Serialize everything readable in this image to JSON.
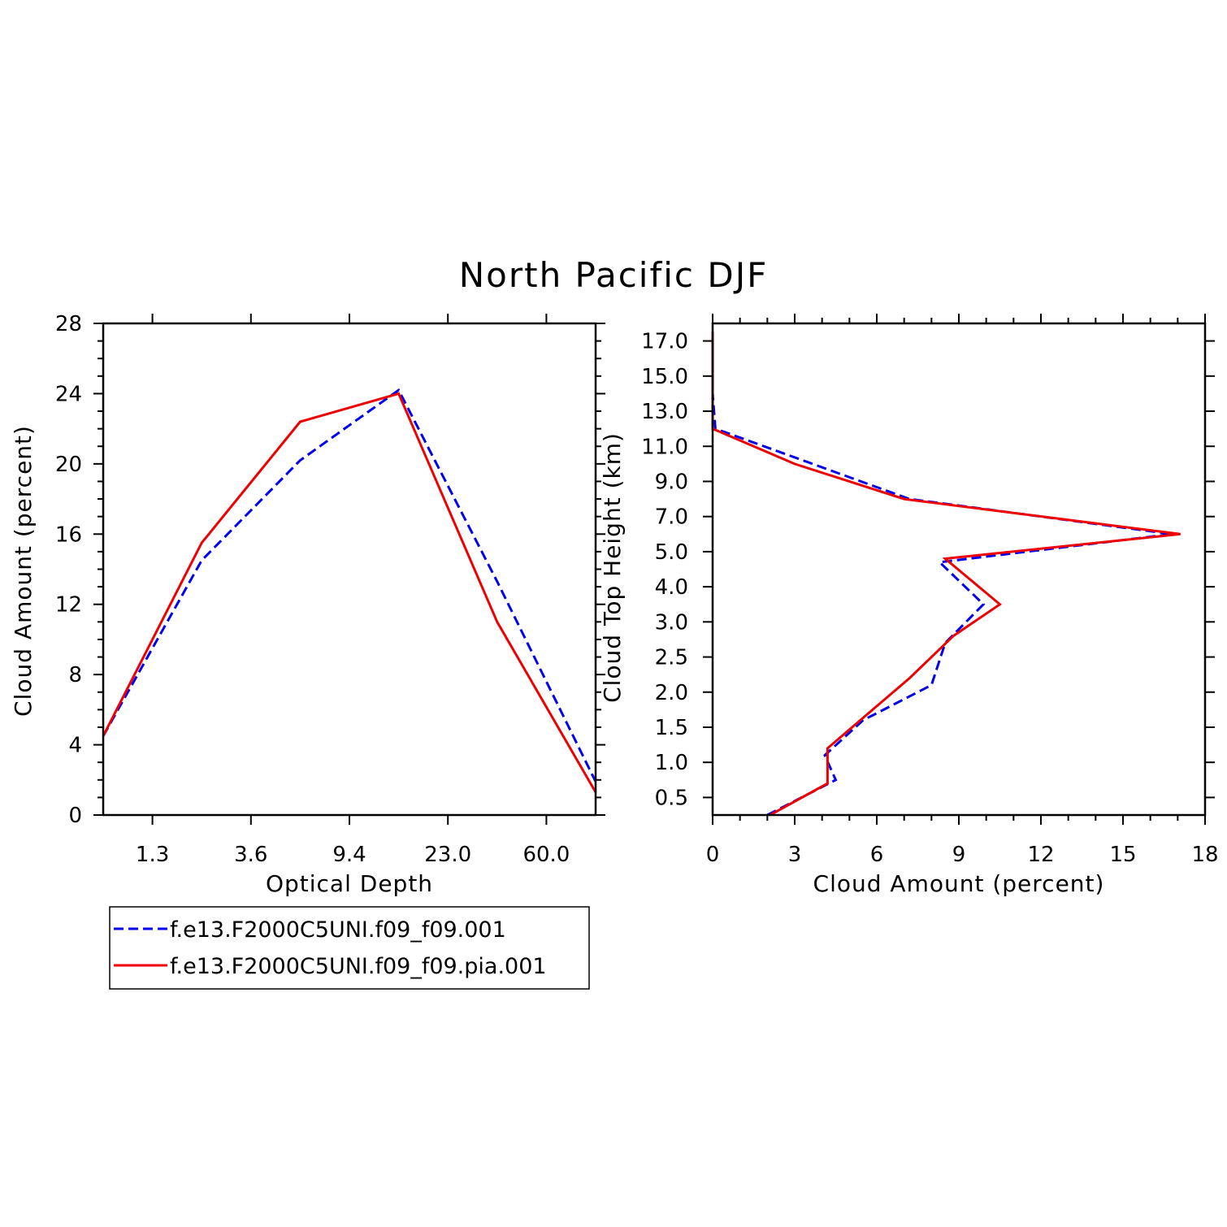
{
  "title": "North Pacific DJF",
  "colors": {
    "series1": "#0000ee",
    "series2": "#ee0000",
    "axis": "#000000"
  },
  "legend": [
    {
      "label": "f.e13.F2000C5UNI.f09_f09.001",
      "style": "dashed",
      "color": "#0000ee"
    },
    {
      "label": "f.e13.F2000C5UNI.f09_f09.pia.001",
      "style": "solid",
      "color": "#ee0000"
    }
  ],
  "chart_data": [
    {
      "type": "line",
      "xlabel": "Optical Depth",
      "ylabel": "Cloud Amount (percent)",
      "x_index": [
        0,
        1,
        2,
        3,
        4,
        5
      ],
      "xlim": [
        0,
        5
      ],
      "xtick_positions": [
        0.5,
        1.5,
        2.5,
        3.5,
        4.5
      ],
      "xtick_labels": [
        "1.3",
        "3.6",
        "9.4",
        "23.0",
        "60.0"
      ],
      "ylim": [
        0,
        28
      ],
      "yticks": [
        0,
        4,
        8,
        12,
        16,
        20,
        24,
        28
      ],
      "series": [
        {
          "name": "f.e13.F2000C5UNI.f09_f09.001",
          "values": [
            4.5,
            14.5,
            20.2,
            24.2,
            13.3,
            1.9
          ]
        },
        {
          "name": "f.e13.F2000C5UNI.f09_f09.pia.001",
          "values": [
            4.5,
            15.5,
            22.4,
            24.0,
            11.0,
            1.3
          ]
        }
      ]
    },
    {
      "type": "line",
      "xlabel": "Cloud Amount (percent)",
      "ylabel": "Cloud Top Height (km)",
      "xlim": [
        0,
        18
      ],
      "xticks": [
        0,
        3,
        6,
        9,
        12,
        15,
        18
      ],
      "y_levels": [
        0.5,
        1.0,
        1.5,
        2.0,
        2.5,
        3.0,
        4.0,
        5.0,
        7.0,
        9.0,
        11.0,
        13.0,
        15.0,
        17.0
      ],
      "ytick_labels": [
        "0.5",
        "1.0",
        "1.5",
        "2.0",
        "2.5",
        "3.0",
        "4.0",
        "5.0",
        "7.0",
        "9.0",
        "11.0",
        "13.0",
        "15.0",
        "17.0"
      ],
      "series": [
        {
          "name": "f.e13.F2000C5UNI.f09_f09.001",
          "points": [
            [
              2.0,
              0.0
            ],
            [
              4.5,
              0.5
            ],
            [
              4.1,
              1.1
            ],
            [
              5.5,
              1.6
            ],
            [
              8.0,
              2.1
            ],
            [
              8.5,
              2.7
            ],
            [
              9.9,
              3.5
            ],
            [
              8.3,
              4.7
            ],
            [
              16.8,
              6.0
            ],
            [
              7.2,
              8.0
            ],
            [
              0.1,
              12.0
            ],
            [
              0.0,
              14.0
            ],
            [
              0.0,
              17.5
            ]
          ]
        },
        {
          "name": "f.e13.F2000C5UNI.f09_f09.pia.001",
          "points": [
            [
              2.1,
              0.0
            ],
            [
              4.2,
              0.7
            ],
            [
              4.2,
              1.2
            ],
            [
              6.0,
              1.8
            ],
            [
              7.2,
              2.2
            ],
            [
              8.8,
              2.8
            ],
            [
              10.5,
              3.5
            ],
            [
              8.5,
              4.8
            ],
            [
              17.1,
              6.0
            ],
            [
              7.0,
              8.0
            ],
            [
              3.0,
              10.0
            ],
            [
              0.0,
              12.0
            ],
            [
              0.0,
              17.5
            ]
          ]
        }
      ]
    }
  ]
}
